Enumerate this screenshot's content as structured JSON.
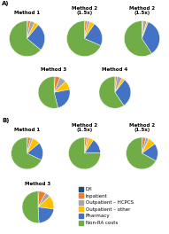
{
  "chart_data": [
    {
      "type": "pie",
      "title": "Method 1",
      "annotations": [
        "A)"
      ],
      "categories": [
        "D/I",
        "Inpatient",
        "Outpatient – HCPCS",
        "Outpatient – other",
        "Pharmacy",
        "Non-RA costs"
      ],
      "values": [
        0.5,
        2.5,
        4.0,
        4.0,
        25.0,
        64.0
      ],
      "colors": [
        "#1f4e79",
        "#ed7d31",
        "#a5a5a5",
        "#ffc000",
        "#4472c4",
        "#70ad47"
      ]
    },
    {
      "type": "pie",
      "title": "Method 2\n(1.5x)",
      "categories": [
        "D/I",
        "Inpatient",
        "Outpatient – HCPCS",
        "Outpatient – other",
        "Pharmacy",
        "Non-RA costs"
      ],
      "values": [
        0.5,
        2.0,
        2.5,
        4.5,
        22.0,
        68.5
      ],
      "colors": [
        "#1f4e79",
        "#ed7d31",
        "#a5a5a5",
        "#ffc000",
        "#4472c4",
        "#70ad47"
      ]
    },
    {
      "type": "pie",
      "title": "Method 2\n(1.5x)",
      "categories": [
        "D/I",
        "Inpatient",
        "Outpatient – HCPCS",
        "Outpatient – other",
        "Pharmacy",
        "Non-RA costs"
      ],
      "values": [
        0.3,
        1.0,
        3.0,
        1.5,
        35.0,
        59.2
      ],
      "colors": [
        "#1f4e79",
        "#ed7d31",
        "#a5a5a5",
        "#ffc000",
        "#4472c4",
        "#70ad47"
      ]
    },
    {
      "type": "pie",
      "title": "Method 3",
      "categories": [
        "D/I",
        "Inpatient",
        "Outpatient – HCPCS",
        "Outpatient – other",
        "Pharmacy",
        "Non-RA costs"
      ],
      "values": [
        1.0,
        5.0,
        7.0,
        9.0,
        24.0,
        54.0
      ],
      "colors": [
        "#1f4e79",
        "#ed7d31",
        "#a5a5a5",
        "#ffc000",
        "#4472c4",
        "#70ad47"
      ]
    },
    {
      "type": "pie",
      "title": "Method 4",
      "categories": [
        "D/I",
        "Inpatient",
        "Outpatient – HCPCS",
        "Outpatient – other",
        "Pharmacy",
        "Non-RA costs"
      ],
      "values": [
        0.5,
        2.0,
        5.0,
        3.0,
        30.0,
        59.5
      ],
      "colors": [
        "#1f4e79",
        "#ed7d31",
        "#a5a5a5",
        "#ffc000",
        "#4472c4",
        "#70ad47"
      ]
    },
    {
      "type": "pie",
      "title": "Method 1",
      "annotations": [
        "B)"
      ],
      "categories": [
        "D/I",
        "Inpatient",
        "Outpatient – HCPCS",
        "Outpatient – other",
        "Pharmacy",
        "Non-RA costs"
      ],
      "values": [
        0.5,
        3.0,
        2.5,
        8.0,
        18.0,
        68.0
      ],
      "colors": [
        "#1f4e79",
        "#ed7d31",
        "#a5a5a5",
        "#ffc000",
        "#4472c4",
        "#70ad47"
      ]
    },
    {
      "type": "pie",
      "title": "Method 2\n(1.5x)",
      "categories": [
        "D/I",
        "Inpatient",
        "Outpatient – HCPCS",
        "Outpatient – other",
        "Pharmacy",
        "Non-RA costs"
      ],
      "values": [
        0.5,
        2.0,
        2.0,
        5.0,
        15.0,
        75.5
      ],
      "colors": [
        "#1f4e79",
        "#ed7d31",
        "#a5a5a5",
        "#ffc000",
        "#4472c4",
        "#70ad47"
      ]
    },
    {
      "type": "pie",
      "title": "Method 2\n(1.5x)",
      "categories": [
        "D/I",
        "Inpatient",
        "Outpatient – HCPCS",
        "Outpatient – other",
        "Pharmacy",
        "Non-RA costs"
      ],
      "values": [
        0.5,
        3.5,
        3.0,
        8.0,
        18.0,
        67.0
      ],
      "colors": [
        "#1f4e79",
        "#ed7d31",
        "#a5a5a5",
        "#ffc000",
        "#4472c4",
        "#70ad47"
      ]
    },
    {
      "type": "pie",
      "title": "Method 3",
      "legend": "center left",
      "categories": [
        "D/I",
        "Inpatient",
        "Outpatient – HCPCS",
        "Outpatient – other",
        "Pharmacy",
        "Non-RA costs"
      ],
      "values": [
        1.0,
        7.0,
        5.0,
        14.0,
        22.0,
        51.0
      ],
      "colors": [
        "#1f4e79",
        "#ed7d31",
        "#a5a5a5",
        "#ffc000",
        "#4472c4",
        "#70ad47"
      ]
    }
  ]
}
